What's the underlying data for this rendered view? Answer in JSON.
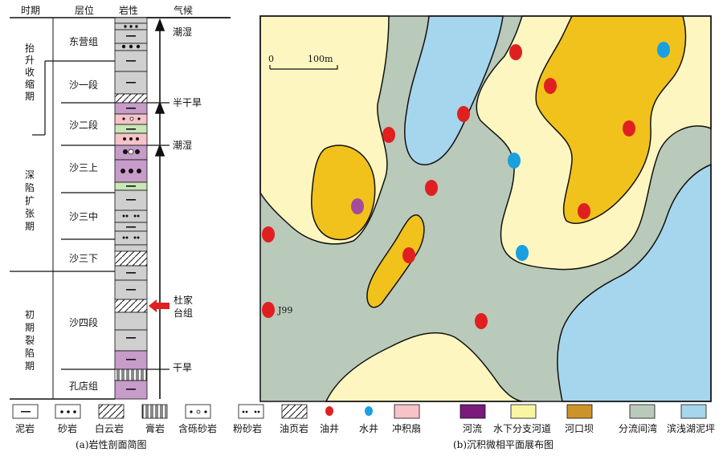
{
  "left_panel": {
    "headers": {
      "period": "时期",
      "strata": "层位",
      "lithology": "岩性",
      "climate": "气候"
    },
    "periods": [
      {
        "label": "抬升收缩期",
        "chars": [
          "抬",
          "升",
          "收",
          "缩",
          "期"
        ]
      },
      {
        "label": "深陷扩张期",
        "chars": [
          "深",
          "陷",
          "扩",
          "张",
          "期"
        ]
      },
      {
        "label": "初期裂陷期",
        "chars": [
          "初",
          "期",
          "裂",
          "陷",
          "期"
        ]
      }
    ],
    "strata": [
      "东营组",
      "沙一段",
      "沙二段",
      "沙三上",
      "沙三中",
      "沙三下",
      "沙四段",
      "孔店组"
    ],
    "climate": {
      "humid_top": "潮湿",
      "semi_arid": "半干旱",
      "humid_mid": "潮湿",
      "arid": "干旱"
    },
    "marker": {
      "line1": "杜家",
      "line2": "台组"
    },
    "caption": "(a)岩性剖面简图"
  },
  "right_panel": {
    "scale": {
      "zero": "0",
      "distance": "100m"
    },
    "well_label": "J99",
    "caption": "(b)沉积微相平面展布图"
  },
  "legend": {
    "mudstone": "泥岩",
    "sandstone": "砂岩",
    "dolomite": "白云岩",
    "gypsum": "膏岩",
    "pebbly_sandstone": "含砾砂岩",
    "siltstone": "粉砂岩",
    "oil_shale": "油页岩",
    "oil_well": "油井",
    "water_well": "水井",
    "alluvial_fan": "冲积扇",
    "river": "河流",
    "subaqueous_channel": "水下分支河道",
    "mouth_bar": "河口坝",
    "interdistributary_bay": "分流间湾",
    "shore_mud_flat": "滨浅湖泥坪"
  },
  "colors": {
    "oil_well": "#e02020",
    "water_well": "#1aa0e0",
    "alluvial_fan": "#f6c3c8",
    "river": "#7a1a7a",
    "subaqueous_channel": "#f8f6a0",
    "mouth_bar": "#cc9328",
    "interdistributary_bay": "#b9c9ba",
    "shore_mud_flat": "#a5d6ee",
    "mouth_bar_map": "#f1c21c",
    "channel_map": "#fdf6c0",
    "gray_rock": "#cfcfcf",
    "purple_rock": "#c79cc9",
    "green_rock": "#c8e6b8"
  },
  "icons": [
    "arrow-up-icon",
    "red-arrow-icon"
  ]
}
